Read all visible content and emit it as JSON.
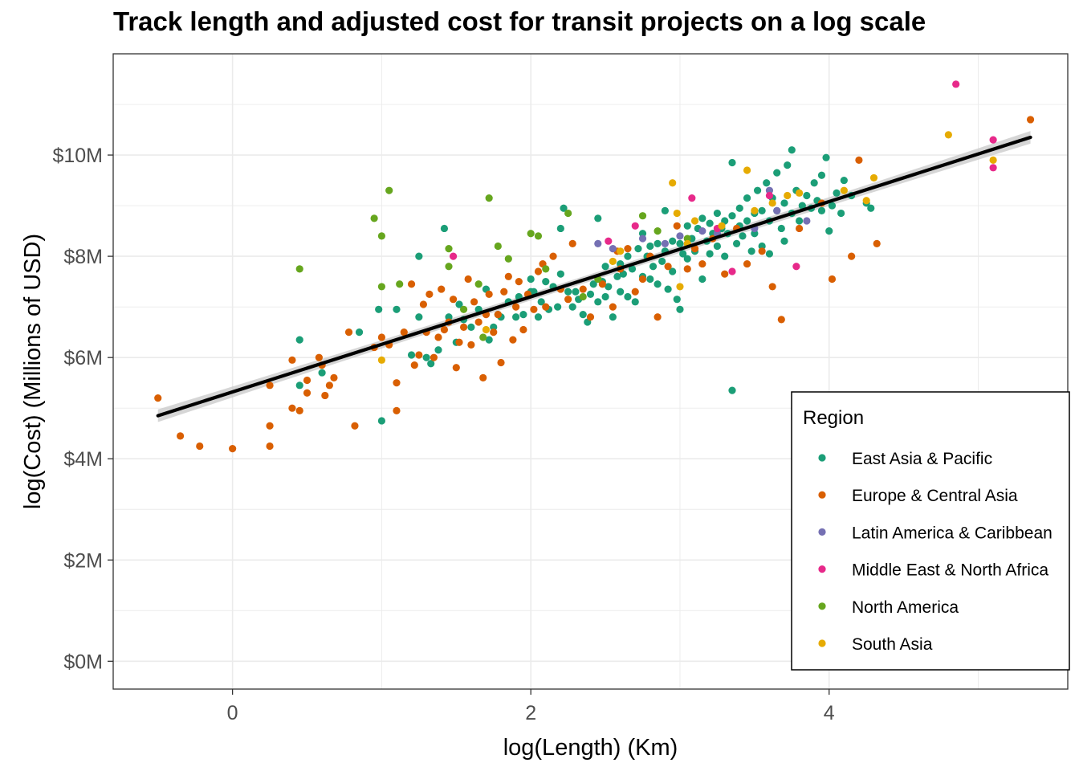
{
  "chart_data": {
    "type": "scatter",
    "title": "Track length and adjusted cost for transit projects on a log scale",
    "xlabel": "log(Length) (Km)",
    "ylabel": "log(Cost) (Millions of USD)",
    "x_ticks": [
      0,
      2,
      4
    ],
    "y_ticks": [
      {
        "value": 0,
        "label": "$0M"
      },
      {
        "value": 2,
        "label": "$2M"
      },
      {
        "value": 4,
        "label": "$4M"
      },
      {
        "value": 6,
        "label": "$6M"
      },
      {
        "value": 8,
        "label": "$8M"
      },
      {
        "value": 10,
        "label": "$10M"
      }
    ],
    "xlim": [
      -0.8,
      5.6
    ],
    "ylim": [
      -0.55,
      12.0
    ],
    "grid": true,
    "legend": {
      "title": "Region",
      "position": "bottom-right"
    },
    "trend_line": {
      "type": "linear",
      "x": [
        -0.5,
        5.35
      ],
      "y": [
        4.85,
        10.35
      ],
      "color": "#000000",
      "confidence_band": true
    },
    "series": [
      {
        "name": "East Asia & Pacific",
        "color": "#1b9e77",
        "points": [
          [
            0.45,
            6.35
          ],
          [
            0.45,
            5.45
          ],
          [
            0.6,
            5.7
          ],
          [
            0.85,
            6.5
          ],
          [
            0.98,
            6.95
          ],
          [
            1.0,
            4.75
          ],
          [
            1.1,
            6.95
          ],
          [
            1.2,
            6.05
          ],
          [
            1.25,
            6.8
          ],
          [
            1.25,
            8.0
          ],
          [
            1.3,
            6.0
          ],
          [
            1.33,
            5.88
          ],
          [
            1.38,
            6.15
          ],
          [
            1.42,
            8.55
          ],
          [
            1.45,
            6.8
          ],
          [
            1.5,
            6.3
          ],
          [
            1.52,
            7.05
          ],
          [
            1.55,
            6.75
          ],
          [
            1.6,
            6.6
          ],
          [
            1.65,
            6.95
          ],
          [
            1.7,
            7.35
          ],
          [
            1.72,
            6.35
          ],
          [
            1.75,
            6.6
          ],
          [
            1.78,
            6.85
          ],
          [
            1.8,
            6.8
          ],
          [
            1.85,
            7.1
          ],
          [
            1.9,
            6.8
          ],
          [
            1.92,
            7.2
          ],
          [
            1.95,
            6.85
          ],
          [
            2.0,
            7.3
          ],
          [
            2.0,
            7.55
          ],
          [
            2.02,
            7.3
          ],
          [
            2.05,
            6.8
          ],
          [
            2.07,
            7.1
          ],
          [
            2.1,
            7.5
          ],
          [
            2.12,
            6.95
          ],
          [
            2.15,
            7.4
          ],
          [
            2.18,
            7.0
          ],
          [
            2.2,
            7.65
          ],
          [
            2.2,
            8.55
          ],
          [
            2.22,
            8.95
          ],
          [
            2.25,
            7.3
          ],
          [
            2.28,
            7.0
          ],
          [
            2.3,
            7.3
          ],
          [
            2.32,
            7.15
          ],
          [
            2.35,
            6.85
          ],
          [
            2.38,
            6.7
          ],
          [
            2.4,
            7.25
          ],
          [
            2.42,
            7.45
          ],
          [
            2.45,
            7.1
          ],
          [
            2.45,
            8.75
          ],
          [
            2.48,
            7.5
          ],
          [
            2.5,
            7.2
          ],
          [
            2.5,
            7.8
          ],
          [
            2.52,
            7.4
          ],
          [
            2.55,
            6.8
          ],
          [
            2.58,
            7.6
          ],
          [
            2.6,
            7.3
          ],
          [
            2.6,
            7.85
          ],
          [
            2.62,
            7.65
          ],
          [
            2.65,
            8.0
          ],
          [
            2.65,
            7.2
          ],
          [
            2.68,
            7.75
          ],
          [
            2.7,
            7.1
          ],
          [
            2.72,
            8.15
          ],
          [
            2.75,
            7.6
          ],
          [
            2.75,
            8.45
          ],
          [
            2.78,
            8.0
          ],
          [
            2.8,
            7.55
          ],
          [
            2.8,
            8.2
          ],
          [
            2.82,
            7.8
          ],
          [
            2.85,
            8.25
          ],
          [
            2.85,
            7.45
          ],
          [
            2.88,
            7.9
          ],
          [
            2.9,
            8.1
          ],
          [
            2.9,
            8.9
          ],
          [
            2.92,
            7.35
          ],
          [
            2.95,
            8.3
          ],
          [
            2.95,
            7.7
          ],
          [
            2.98,
            7.15
          ],
          [
            3.0,
            8.25
          ],
          [
            3.0,
            6.95
          ],
          [
            3.02,
            8.05
          ],
          [
            3.05,
            8.6
          ],
          [
            3.05,
            7.95
          ],
          [
            3.08,
            8.35
          ],
          [
            3.1,
            8.1
          ],
          [
            3.12,
            8.55
          ],
          [
            3.15,
            7.55
          ],
          [
            3.15,
            8.75
          ],
          [
            3.18,
            8.3
          ],
          [
            3.2,
            8.65
          ],
          [
            3.2,
            8.05
          ],
          [
            3.22,
            8.45
          ],
          [
            3.25,
            8.85
          ],
          [
            3.25,
            8.2
          ],
          [
            3.28,
            8.55
          ],
          [
            3.3,
            8.7
          ],
          [
            3.3,
            8.0
          ],
          [
            3.32,
            8.45
          ],
          [
            3.35,
            8.8
          ],
          [
            3.35,
            9.85
          ],
          [
            3.35,
            5.35
          ],
          [
            3.38,
            8.25
          ],
          [
            3.4,
            8.6
          ],
          [
            3.4,
            8.95
          ],
          [
            3.42,
            8.4
          ],
          [
            3.45,
            8.7
          ],
          [
            3.45,
            9.15
          ],
          [
            3.48,
            8.1
          ],
          [
            3.5,
            8.85
          ],
          [
            3.5,
            8.45
          ],
          [
            3.52,
            9.3
          ],
          [
            3.55,
            8.9
          ],
          [
            3.55,
            8.2
          ],
          [
            3.58,
            9.45
          ],
          [
            3.6,
            8.7
          ],
          [
            3.6,
            8.05
          ],
          [
            3.62,
            9.15
          ],
          [
            3.65,
            8.9
          ],
          [
            3.65,
            9.65
          ],
          [
            3.68,
            8.55
          ],
          [
            3.7,
            9.05
          ],
          [
            3.7,
            8.3
          ],
          [
            3.72,
            9.8
          ],
          [
            3.75,
            8.85
          ],
          [
            3.75,
            10.1
          ],
          [
            3.78,
            9.3
          ],
          [
            3.8,
            8.7
          ],
          [
            3.82,
            9.0
          ],
          [
            3.85,
            9.2
          ],
          [
            3.88,
            8.95
          ],
          [
            3.9,
            9.45
          ],
          [
            3.92,
            9.1
          ],
          [
            3.95,
            9.6
          ],
          [
            3.95,
            8.9
          ],
          [
            3.98,
            9.95
          ],
          [
            4.0,
            8.5
          ],
          [
            4.02,
            9.0
          ],
          [
            4.05,
            9.25
          ],
          [
            4.08,
            8.85
          ],
          [
            4.1,
            9.5
          ],
          [
            4.15,
            9.2
          ],
          [
            4.25,
            9.05
          ],
          [
            4.28,
            8.95
          ]
        ]
      },
      {
        "name": "Europe & Central Asia",
        "color": "#d95f02",
        "points": [
          [
            -0.5,
            5.2
          ],
          [
            -0.35,
            4.45
          ],
          [
            -0.22,
            4.25
          ],
          [
            0.0,
            4.2
          ],
          [
            0.25,
            4.25
          ],
          [
            0.25,
            4.65
          ],
          [
            0.25,
            5.45
          ],
          [
            0.4,
            5.0
          ],
          [
            0.4,
            5.95
          ],
          [
            0.45,
            4.95
          ],
          [
            0.5,
            5.3
          ],
          [
            0.5,
            5.55
          ],
          [
            0.58,
            6.0
          ],
          [
            0.6,
            5.85
          ],
          [
            0.62,
            5.25
          ],
          [
            0.65,
            5.45
          ],
          [
            0.68,
            5.6
          ],
          [
            0.78,
            6.5
          ],
          [
            0.82,
            4.65
          ],
          [
            0.95,
            6.2
          ],
          [
            1.0,
            6.4
          ],
          [
            1.05,
            6.25
          ],
          [
            1.1,
            5.5
          ],
          [
            1.1,
            4.95
          ],
          [
            1.15,
            6.5
          ],
          [
            1.2,
            7.45
          ],
          [
            1.22,
            5.85
          ],
          [
            1.25,
            6.05
          ],
          [
            1.28,
            7.05
          ],
          [
            1.3,
            6.5
          ],
          [
            1.32,
            7.25
          ],
          [
            1.35,
            6.0
          ],
          [
            1.38,
            6.4
          ],
          [
            1.4,
            7.35
          ],
          [
            1.42,
            6.55
          ],
          [
            1.45,
            6.7
          ],
          [
            1.48,
            7.15
          ],
          [
            1.5,
            5.8
          ],
          [
            1.52,
            6.3
          ],
          [
            1.55,
            6.6
          ],
          [
            1.58,
            7.55
          ],
          [
            1.6,
            6.25
          ],
          [
            1.62,
            7.1
          ],
          [
            1.65,
            6.7
          ],
          [
            1.68,
            5.6
          ],
          [
            1.7,
            6.85
          ],
          [
            1.72,
            7.25
          ],
          [
            1.75,
            6.5
          ],
          [
            1.78,
            6.85
          ],
          [
            1.8,
            5.9
          ],
          [
            1.82,
            7.3
          ],
          [
            1.85,
            7.6
          ],
          [
            1.88,
            6.35
          ],
          [
            1.9,
            7.0
          ],
          [
            1.92,
            7.5
          ],
          [
            1.95,
            6.55
          ],
          [
            1.98,
            7.25
          ],
          [
            2.02,
            6.95
          ],
          [
            2.05,
            7.7
          ],
          [
            2.08,
            7.85
          ],
          [
            2.1,
            7.0
          ],
          [
            2.15,
            8.0
          ],
          [
            2.2,
            7.35
          ],
          [
            2.25,
            7.15
          ],
          [
            2.28,
            8.25
          ],
          [
            2.35,
            7.35
          ],
          [
            2.4,
            6.8
          ],
          [
            2.48,
            7.45
          ],
          [
            2.55,
            7.0
          ],
          [
            2.58,
            8.1
          ],
          [
            2.6,
            7.75
          ],
          [
            2.65,
            8.15
          ],
          [
            2.7,
            7.3
          ],
          [
            2.75,
            7.55
          ],
          [
            2.8,
            8.0
          ],
          [
            2.85,
            6.8
          ],
          [
            2.92,
            7.8
          ],
          [
            2.98,
            8.6
          ],
          [
            3.05,
            7.75
          ],
          [
            3.1,
            8.15
          ],
          [
            3.15,
            7.85
          ],
          [
            3.22,
            8.35
          ],
          [
            3.3,
            7.65
          ],
          [
            3.38,
            8.55
          ],
          [
            3.45,
            7.85
          ],
          [
            3.55,
            8.1
          ],
          [
            3.62,
            7.4
          ],
          [
            3.68,
            6.75
          ],
          [
            3.8,
            8.55
          ],
          [
            3.95,
            9.05
          ],
          [
            4.02,
            7.55
          ],
          [
            4.15,
            8.0
          ],
          [
            4.2,
            9.9
          ],
          [
            4.32,
            8.25
          ],
          [
            5.35,
            10.7
          ]
        ]
      },
      {
        "name": "Latin America & Caribbean",
        "color": "#7570b3",
        "points": [
          [
            2.45,
            8.25
          ],
          [
            2.55,
            8.15
          ],
          [
            2.75,
            8.35
          ],
          [
            2.9,
            8.25
          ],
          [
            3.0,
            8.4
          ],
          [
            3.15,
            8.5
          ],
          [
            3.25,
            8.45
          ],
          [
            3.5,
            8.55
          ],
          [
            3.6,
            9.3
          ],
          [
            3.65,
            8.9
          ],
          [
            3.85,
            8.7
          ]
        ]
      },
      {
        "name": "Middle East & North Africa",
        "color": "#e7298a",
        "points": [
          [
            1.48,
            8.0
          ],
          [
            2.52,
            8.3
          ],
          [
            2.7,
            8.6
          ],
          [
            3.08,
            9.15
          ],
          [
            3.25,
            8.55
          ],
          [
            3.35,
            7.7
          ],
          [
            3.6,
            9.2
          ],
          [
            3.78,
            7.8
          ],
          [
            4.85,
            11.4
          ],
          [
            5.1,
            10.3
          ],
          [
            5.1,
            9.75
          ]
        ]
      },
      {
        "name": "North America",
        "color": "#66a61e",
        "points": [
          [
            0.45,
            7.75
          ],
          [
            0.95,
            8.75
          ],
          [
            1.0,
            8.4
          ],
          [
            1.0,
            7.4
          ],
          [
            1.05,
            9.3
          ],
          [
            1.12,
            7.45
          ],
          [
            1.45,
            7.8
          ],
          [
            1.45,
            8.15
          ],
          [
            1.55,
            6.95
          ],
          [
            1.65,
            7.45
          ],
          [
            1.68,
            6.4
          ],
          [
            1.72,
            9.15
          ],
          [
            1.78,
            8.2
          ],
          [
            1.85,
            7.95
          ],
          [
            2.0,
            8.45
          ],
          [
            2.05,
            8.4
          ],
          [
            2.1,
            7.75
          ],
          [
            2.25,
            8.85
          ],
          [
            2.35,
            7.2
          ],
          [
            2.45,
            7.55
          ],
          [
            2.75,
            8.8
          ],
          [
            2.85,
            8.5
          ],
          [
            3.05,
            8.35
          ]
        ]
      },
      {
        "name": "South Asia",
        "color": "#e6ab02",
        "points": [
          [
            1.0,
            5.95
          ],
          [
            1.7,
            6.55
          ],
          [
            2.55,
            7.9
          ],
          [
            2.6,
            8.1
          ],
          [
            2.95,
            9.45
          ],
          [
            2.98,
            8.85
          ],
          [
            3.0,
            7.4
          ],
          [
            3.05,
            8.25
          ],
          [
            3.1,
            8.7
          ],
          [
            3.28,
            8.6
          ],
          [
            3.45,
            9.7
          ],
          [
            3.5,
            8.9
          ],
          [
            3.62,
            9.05
          ],
          [
            3.72,
            9.2
          ],
          [
            3.8,
            9.25
          ],
          [
            4.1,
            9.3
          ],
          [
            4.25,
            9.1
          ],
          [
            4.3,
            9.55
          ],
          [
            4.8,
            10.4
          ],
          [
            5.1,
            9.9
          ]
        ]
      }
    ]
  }
}
